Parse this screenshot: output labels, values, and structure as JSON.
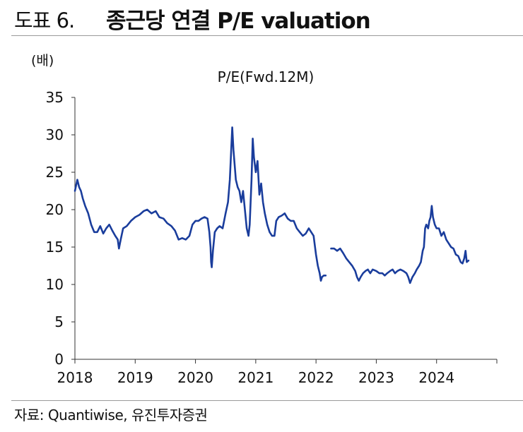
{
  "header": {
    "figure_label": "도표 6.",
    "title": "종근당 연결 P/E valuation"
  },
  "source": "자료: Quantiwise, 유진투자증권",
  "chart_data": {
    "type": "line",
    "title": "P/E(Fwd.12M)",
    "unit_label": "(배)",
    "xlabel": "",
    "ylabel": "(배)",
    "ylim": [
      0,
      35
    ],
    "xlim": [
      2018,
      2025
    ],
    "grid": false,
    "legend": "none",
    "line_color": "#1a3d9c",
    "y_ticks": [
      0,
      5,
      10,
      15,
      20,
      25,
      30,
      35
    ],
    "x_ticks": [
      {
        "value": 2018,
        "label": "2018"
      },
      {
        "value": 2019,
        "label": "2019"
      },
      {
        "value": 2020,
        "label": "2020"
      },
      {
        "value": 2021,
        "label": "2021"
      },
      {
        "value": 2022,
        "label": "2022"
      },
      {
        "value": 2023,
        "label": "2023"
      },
      {
        "value": 2024,
        "label": "2024"
      }
    ],
    "series": [
      {
        "name": "P/E(Fwd.12M)",
        "segments": [
          [
            [
              2018.0,
              22.5
            ],
            [
              2018.04,
              24.0
            ],
            [
              2018.07,
              23.0
            ],
            [
              2018.1,
              22.5
            ],
            [
              2018.13,
              21.5
            ],
            [
              2018.17,
              20.5
            ],
            [
              2018.22,
              19.5
            ],
            [
              2018.27,
              18.0
            ],
            [
              2018.32,
              17.0
            ],
            [
              2018.37,
              17.0
            ],
            [
              2018.42,
              17.8
            ],
            [
              2018.47,
              16.8
            ],
            [
              2018.52,
              17.5
            ],
            [
              2018.57,
              18.0
            ],
            [
              2018.62,
              17.2
            ],
            [
              2018.67,
              16.5
            ],
            [
              2018.71,
              16.0
            ],
            [
              2018.73,
              14.8
            ],
            [
              2018.76,
              16.0
            ],
            [
              2018.8,
              17.5
            ],
            [
              2018.86,
              17.8
            ],
            [
              2018.93,
              18.5
            ],
            [
              2019.0,
              19.0
            ],
            [
              2019.07,
              19.3
            ],
            [
              2019.14,
              19.8
            ],
            [
              2019.2,
              20.0
            ],
            [
              2019.27,
              19.5
            ],
            [
              2019.34,
              19.8
            ],
            [
              2019.4,
              19.0
            ],
            [
              2019.47,
              18.8
            ],
            [
              2019.53,
              18.2
            ],
            [
              2019.6,
              17.8
            ],
            [
              2019.66,
              17.2
            ],
            [
              2019.72,
              16.0
            ],
            [
              2019.78,
              16.2
            ],
            [
              2019.84,
              16.0
            ],
            [
              2019.9,
              16.5
            ],
            [
              2019.95,
              18.0
            ],
            [
              2020.0,
              18.5
            ],
            [
              2020.05,
              18.5
            ],
            [
              2020.1,
              18.8
            ],
            [
              2020.15,
              19.0
            ],
            [
              2020.2,
              18.8
            ],
            [
              2020.23,
              17.0
            ],
            [
              2020.25,
              15.0
            ],
            [
              2020.26,
              13.0
            ],
            [
              2020.27,
              12.3
            ],
            [
              2020.29,
              14.5
            ],
            [
              2020.32,
              17.0
            ],
            [
              2020.36,
              17.5
            ],
            [
              2020.4,
              17.8
            ],
            [
              2020.45,
              17.5
            ],
            [
              2020.5,
              19.5
            ],
            [
              2020.54,
              21.0
            ],
            [
              2020.57,
              24.0
            ],
            [
              2020.59,
              27.5
            ],
            [
              2020.61,
              31.0
            ],
            [
              2020.63,
              28.0
            ],
            [
              2020.65,
              26.0
            ],
            [
              2020.67,
              24.0
            ],
            [
              2020.7,
              23.0
            ],
            [
              2020.73,
              22.5
            ],
            [
              2020.76,
              21.0
            ],
            [
              2020.79,
              22.5
            ],
            [
              2020.82,
              20.0
            ],
            [
              2020.85,
              17.5
            ],
            [
              2020.88,
              16.5
            ],
            [
              2020.9,
              18.0
            ],
            [
              2020.93,
              24.0
            ],
            [
              2020.95,
              29.5
            ],
            [
              2020.97,
              27.0
            ],
            [
              2021.0,
              25.0
            ],
            [
              2021.03,
              26.5
            ],
            [
              2021.06,
              22.0
            ],
            [
              2021.09,
              23.5
            ],
            [
              2021.12,
              21.0
            ],
            [
              2021.15,
              19.5
            ],
            [
              2021.19,
              18.0
            ],
            [
              2021.23,
              17.0
            ],
            [
              2021.27,
              16.5
            ],
            [
              2021.31,
              16.5
            ],
            [
              2021.34,
              18.5
            ],
            [
              2021.38,
              19.0
            ],
            [
              2021.43,
              19.2
            ],
            [
              2021.48,
              19.5
            ],
            [
              2021.53,
              18.8
            ],
            [
              2021.58,
              18.5
            ],
            [
              2021.63,
              18.5
            ],
            [
              2021.68,
              17.5
            ],
            [
              2021.73,
              17.0
            ],
            [
              2021.78,
              16.5
            ],
            [
              2021.83,
              16.8
            ],
            [
              2021.88,
              17.5
            ],
            [
              2021.92,
              17.0
            ],
            [
              2021.96,
              16.5
            ],
            [
              2022.0,
              14.0
            ],
            [
              2022.03,
              12.5
            ],
            [
              2022.06,
              11.5
            ],
            [
              2022.08,
              10.5
            ],
            [
              2022.1,
              11.0
            ],
            [
              2022.13,
              11.2
            ],
            [
              2022.16,
              11.2
            ]
          ],
          [
            [
              2022.25,
              14.8
            ],
            [
              2022.3,
              14.8
            ],
            [
              2022.35,
              14.5
            ],
            [
              2022.4,
              14.8
            ],
            [
              2022.45,
              14.2
            ],
            [
              2022.5,
              13.5
            ],
            [
              2022.55,
              13.0
            ],
            [
              2022.6,
              12.5
            ],
            [
              2022.65,
              11.8
            ],
            [
              2022.68,
              11.0
            ],
            [
              2022.71,
              10.5
            ],
            [
              2022.74,
              11.0
            ],
            [
              2022.78,
              11.5
            ],
            [
              2022.82,
              11.8
            ],
            [
              2022.86,
              12.0
            ],
            [
              2022.9,
              11.5
            ],
            [
              2022.94,
              12.0
            ],
            [
              2023.0,
              11.8
            ],
            [
              2023.05,
              11.5
            ],
            [
              2023.1,
              11.5
            ],
            [
              2023.14,
              11.2
            ],
            [
              2023.18,
              11.5
            ],
            [
              2023.23,
              11.8
            ],
            [
              2023.27,
              12.0
            ],
            [
              2023.31,
              11.5
            ],
            [
              2023.35,
              11.8
            ],
            [
              2023.4,
              12.0
            ],
            [
              2023.45,
              11.8
            ],
            [
              2023.5,
              11.5
            ],
            [
              2023.53,
              11.0
            ],
            [
              2023.56,
              10.2
            ],
            [
              2023.6,
              11.0
            ],
            [
              2023.64,
              11.5
            ],
            [
              2023.67,
              12.0
            ],
            [
              2023.71,
              12.5
            ],
            [
              2023.74,
              13.0
            ],
            [
              2023.77,
              14.5
            ],
            [
              2023.79,
              15.0
            ],
            [
              2023.81,
              17.5
            ],
            [
              2023.83,
              18.0
            ],
            [
              2023.86,
              17.5
            ],
            [
              2023.88,
              18.5
            ],
            [
              2023.9,
              19.0
            ],
            [
              2023.92,
              20.5
            ],
            [
              2023.94,
              19.0
            ],
            [
              2023.97,
              18.0
            ],
            [
              2024.0,
              17.5
            ],
            [
              2024.04,
              17.5
            ],
            [
              2024.08,
              16.5
            ],
            [
              2024.12,
              17.0
            ],
            [
              2024.16,
              16.0
            ],
            [
              2024.2,
              15.5
            ],
            [
              2024.24,
              15.0
            ],
            [
              2024.28,
              14.8
            ],
            [
              2024.32,
              14.0
            ],
            [
              2024.36,
              13.8
            ],
            [
              2024.4,
              13.0
            ],
            [
              2024.43,
              12.8
            ],
            [
              2024.46,
              13.5
            ],
            [
              2024.48,
              14.5
            ],
            [
              2024.5,
              13.0
            ],
            [
              2024.53,
              13.2
            ]
          ]
        ]
      }
    ]
  }
}
